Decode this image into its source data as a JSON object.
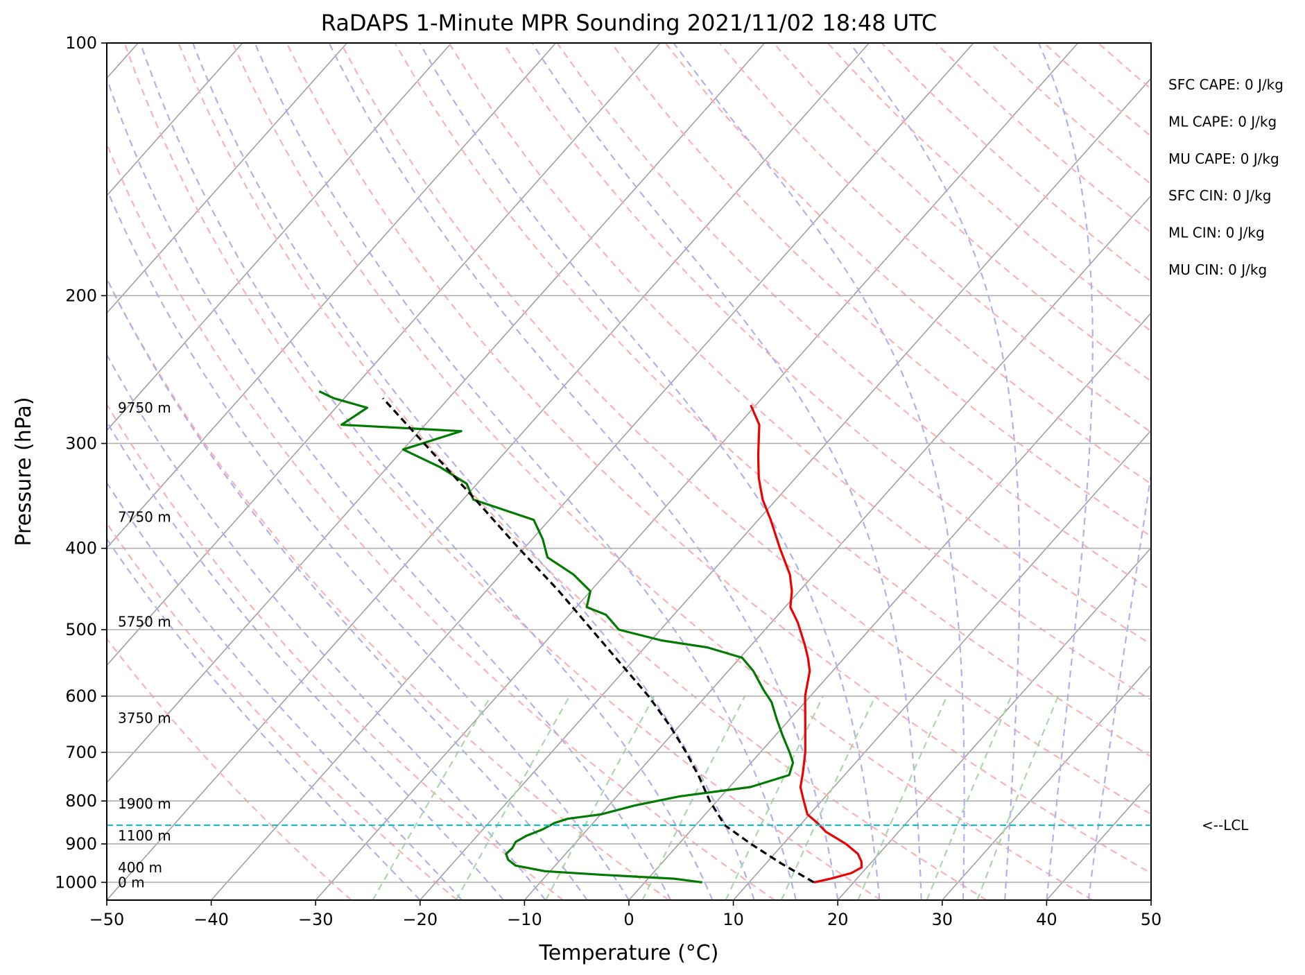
{
  "chart_data": {
    "type": "line",
    "chart_kind": "skew-t log-p sounding",
    "title": "RaDAPS 1-Minute MPR Sounding 2021/11/02 18:48 UTC",
    "xlabel": "Temperature (°C)",
    "ylabel": "Pressure (hPa)",
    "xlim": [
      -50,
      50
    ],
    "ylim": [
      1050,
      100
    ],
    "y_scale": "log",
    "x_ticks": [
      "−50",
      "−40",
      "−30",
      "−20",
      "−10",
      "0",
      "10",
      "20",
      "30",
      "40",
      "50"
    ],
    "y_ticks": [
      "100",
      "200",
      "300",
      "400",
      "500",
      "600",
      "700",
      "800",
      "900",
      "1000"
    ],
    "y_tick_values": [
      100,
      200,
      300,
      400,
      500,
      600,
      700,
      800,
      900,
      1000
    ],
    "grid": true,
    "colors": {
      "temperature": "#ee0000",
      "dewpoint": "#007a00",
      "parcel": "#000000",
      "lcl": "#17becf",
      "isotherm": "#a0a0a0",
      "dry_adiabat": "#ffb0b0",
      "moist_adiabat": "#b0b0f0",
      "mixing_ratio": "#a8d8a8"
    },
    "series": [
      {
        "key": "temperature",
        "points": [
          {
            "p": 1000,
            "t": 16.2
          },
          {
            "p": 990,
            "t": 17.5
          },
          {
            "p": 975,
            "t": 19.0
          },
          {
            "p": 960,
            "t": 19.5
          },
          {
            "p": 945,
            "t": 19.0
          },
          {
            "p": 925,
            "t": 18.0
          },
          {
            "p": 900,
            "t": 16.0
          },
          {
            "p": 870,
            "t": 13.0
          },
          {
            "p": 850,
            "t": 11.5
          },
          {
            "p": 830,
            "t": 9.8
          },
          {
            "p": 810,
            "t": 8.8
          },
          {
            "p": 790,
            "t": 7.8
          },
          {
            "p": 770,
            "t": 6.8
          },
          {
            "p": 740,
            "t": 5.8
          },
          {
            "p": 700,
            "t": 4.3
          },
          {
            "p": 650,
            "t": 2.0
          },
          {
            "p": 600,
            "t": -0.5
          },
          {
            "p": 560,
            "t": -2.2
          },
          {
            "p": 540,
            "t": -3.5
          },
          {
            "p": 520,
            "t": -5.0
          },
          {
            "p": 490,
            "t": -7.5
          },
          {
            "p": 470,
            "t": -9.5
          },
          {
            "p": 450,
            "t": -10.7
          },
          {
            "p": 430,
            "t": -12.3
          },
          {
            "p": 400,
            "t": -15.5
          },
          {
            "p": 370,
            "t": -18.8
          },
          {
            "p": 350,
            "t": -21.3
          },
          {
            "p": 330,
            "t": -23.5
          },
          {
            "p": 310,
            "t": -25.5
          },
          {
            "p": 285,
            "t": -28.0
          },
          {
            "p": 270,
            "t": -30.5
          }
        ]
      },
      {
        "key": "dewpoint",
        "points": [
          {
            "p": 1000,
            "t": 5.5
          },
          {
            "p": 990,
            "t": 2.5
          },
          {
            "p": 980,
            "t": -4.5
          },
          {
            "p": 970,
            "t": -10.5
          },
          {
            "p": 955,
            "t": -13.8
          },
          {
            "p": 940,
            "t": -15.0
          },
          {
            "p": 925,
            "t": -15.7
          },
          {
            "p": 910,
            "t": -15.6
          },
          {
            "p": 895,
            "t": -15.8
          },
          {
            "p": 880,
            "t": -15.3
          },
          {
            "p": 865,
            "t": -14.3
          },
          {
            "p": 850,
            "t": -13.7
          },
          {
            "p": 840,
            "t": -12.8
          },
          {
            "p": 830,
            "t": -10.0
          },
          {
            "p": 810,
            "t": -7.5
          },
          {
            "p": 790,
            "t": -4.0
          },
          {
            "p": 770,
            "t": 2.0
          },
          {
            "p": 745,
            "t": 4.7
          },
          {
            "p": 720,
            "t": 4.0
          },
          {
            "p": 700,
            "t": 2.8
          },
          {
            "p": 670,
            "t": 0.8
          },
          {
            "p": 640,
            "t": -1.2
          },
          {
            "p": 610,
            "t": -3.2
          },
          {
            "p": 590,
            "t": -5.0
          },
          {
            "p": 560,
            "t": -7.6
          },
          {
            "p": 540,
            "t": -9.8
          },
          {
            "p": 525,
            "t": -14.0
          },
          {
            "p": 515,
            "t": -19.0
          },
          {
            "p": 500,
            "t": -24.0
          },
          {
            "p": 480,
            "t": -26.5
          },
          {
            "p": 470,
            "t": -29.0
          },
          {
            "p": 450,
            "t": -30.0
          },
          {
            "p": 430,
            "t": -33.0
          },
          {
            "p": 410,
            "t": -37.0
          },
          {
            "p": 390,
            "t": -39.0
          },
          {
            "p": 370,
            "t": -41.5
          },
          {
            "p": 350,
            "t": -49.0
          },
          {
            "p": 335,
            "t": -51.0
          },
          {
            "p": 320,
            "t": -55.0
          },
          {
            "p": 305,
            "t": -60.0
          },
          {
            "p": 290,
            "t": -56.0
          },
          {
            "p": 285,
            "t": -68.0
          },
          {
            "p": 272,
            "t": -67.0
          },
          {
            "p": 265,
            "t": -71.0
          },
          {
            "p": 260,
            "t": -73.0
          }
        ]
      },
      {
        "key": "parcel",
        "points": [
          {
            "p": 1000,
            "t": 16.2
          },
          {
            "p": 950,
            "t": 11.5
          },
          {
            "p": 900,
            "t": 6.9
          },
          {
            "p": 855,
            "t": 2.8
          },
          {
            "p": 800,
            "t": -0.7
          },
          {
            "p": 750,
            "t": -3.7
          },
          {
            "p": 700,
            "t": -7.1
          },
          {
            "p": 650,
            "t": -11.0
          },
          {
            "p": 600,
            "t": -15.5
          },
          {
            "p": 550,
            "t": -20.8
          },
          {
            "p": 500,
            "t": -26.6
          },
          {
            "p": 450,
            "t": -33.0
          },
          {
            "p": 400,
            "t": -40.5
          },
          {
            "p": 350,
            "t": -48.8
          },
          {
            "p": 300,
            "t": -58.5
          },
          {
            "p": 265,
            "t": -66.3
          }
        ]
      }
    ],
    "lcl_pressure": 855,
    "lcl_label": "<--LCL",
    "height_labels": [
      {
        "text": "9750 m",
        "p": 272
      },
      {
        "text": "7750 m",
        "p": 367
      },
      {
        "text": "5750 m",
        "p": 489
      },
      {
        "text": "3750 m",
        "p": 637
      },
      {
        "text": "1900 m",
        "p": 806
      },
      {
        "text": "1100 m",
        "p": 880
      },
      {
        "text": "400 m",
        "p": 960
      },
      {
        "text": "0 m",
        "p": 1000
      }
    ],
    "indices": [
      "SFC CAPE: 0 J/kg",
      "ML CAPE: 0 J/kg",
      "MU CAPE: 0 J/kg",
      "SFC CIN: 0 J/kg",
      "ML CIN: 0 J/kg",
      "MU CIN: 0 J/kg"
    ]
  }
}
